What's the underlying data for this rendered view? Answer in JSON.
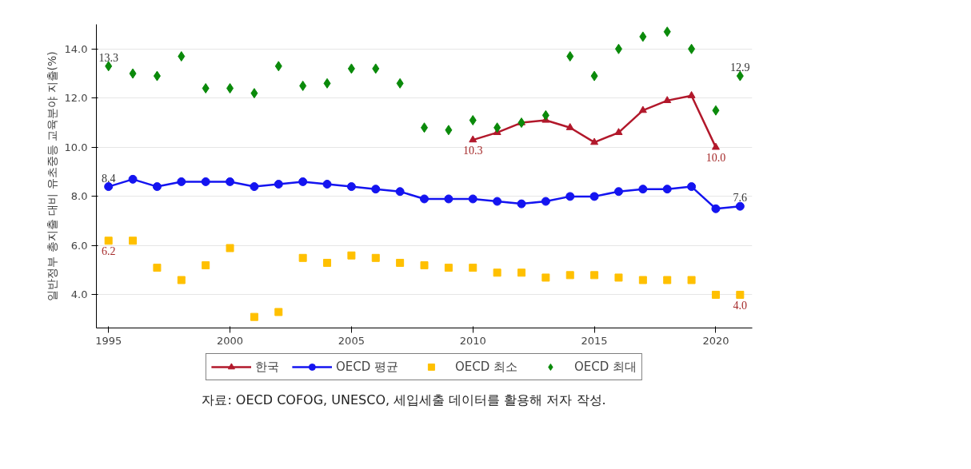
{
  "chart_data": {
    "type": "line",
    "ylabel": "일반정부 총지출 대비 유초중등 교육분야 지출(%)",
    "x": [
      1995,
      1996,
      1997,
      1998,
      1999,
      2000,
      2001,
      2002,
      2003,
      2004,
      2005,
      2006,
      2007,
      2008,
      2009,
      2010,
      2011,
      2012,
      2013,
      2014,
      2015,
      2016,
      2017,
      2018,
      2019,
      2020,
      2021
    ],
    "xlim": [
      1994.5,
      2021.5
    ],
    "xticks": [
      1995,
      2000,
      2005,
      2010,
      2015,
      2020
    ],
    "ylim": [
      2.65,
      15.0
    ],
    "yticks": [
      {
        "value": 4,
        "label": "4.0"
      },
      {
        "value": 6,
        "label": "6.0"
      },
      {
        "value": 8,
        "label": "8.0"
      },
      {
        "value": 10,
        "label": "10.0"
      },
      {
        "value": 12,
        "label": "12.0"
      },
      {
        "value": 14,
        "label": "14.0"
      }
    ],
    "grid": "y",
    "legend": "bottom",
    "series": [
      {
        "name": "한국",
        "marker": "triangle",
        "color": "#b2182b",
        "values": [
          null,
          null,
          null,
          null,
          null,
          null,
          null,
          null,
          null,
          null,
          null,
          null,
          null,
          null,
          null,
          10.3,
          10.6,
          11.0,
          11.1,
          10.8,
          10.2,
          10.6,
          11.5,
          11.9,
          12.1,
          10.0,
          null
        ],
        "value_labels": [
          null,
          null,
          null,
          null,
          null,
          null,
          null,
          null,
          null,
          null,
          null,
          null,
          null,
          null,
          null,
          "10.3",
          null,
          null,
          null,
          null,
          null,
          null,
          null,
          null,
          null,
          "10.0",
          null
        ]
      },
      {
        "name": "OECD 평균",
        "marker": "circle",
        "color": "#1414f0",
        "values": [
          8.4,
          8.7,
          8.4,
          8.6,
          8.6,
          8.6,
          8.4,
          8.5,
          8.6,
          8.5,
          8.4,
          8.3,
          8.2,
          7.9,
          7.9,
          7.9,
          7.8,
          7.7,
          7.8,
          8.0,
          8.0,
          8.2,
          8.3,
          8.3,
          8.4,
          7.5,
          7.6
        ],
        "value_labels": [
          "8.4",
          null,
          null,
          null,
          null,
          null,
          null,
          null,
          null,
          null,
          null,
          null,
          null,
          null,
          null,
          null,
          null,
          null,
          null,
          null,
          null,
          null,
          null,
          null,
          null,
          null,
          "7.6"
        ]
      },
      {
        "name": "OECD 최소",
        "type": "scatter",
        "marker": "square",
        "color": "#ffc000",
        "values": [
          6.2,
          6.2,
          5.1,
          4.6,
          5.2,
          5.9,
          3.1,
          3.3,
          5.5,
          5.3,
          5.6,
          5.5,
          5.3,
          5.2,
          5.1,
          5.1,
          4.9,
          4.9,
          4.7,
          4.8,
          4.8,
          4.7,
          4.6,
          4.6,
          4.6,
          4.0,
          4.0
        ],
        "value_labels": [
          "6.2",
          null,
          null,
          null,
          null,
          null,
          null,
          null,
          null,
          null,
          null,
          null,
          null,
          null,
          null,
          null,
          null,
          null,
          null,
          null,
          null,
          null,
          null,
          null,
          null,
          null,
          "4.0"
        ]
      },
      {
        "name": "OECD 최대",
        "type": "scatter",
        "marker": "diamond",
        "color": "#0a8a0a",
        "values": [
          13.3,
          13.0,
          12.9,
          13.7,
          12.4,
          12.4,
          12.2,
          13.3,
          12.5,
          12.6,
          13.2,
          13.2,
          12.6,
          10.8,
          10.7,
          11.1,
          10.8,
          11.0,
          11.3,
          13.7,
          12.9,
          14.0,
          14.5,
          14.7,
          14.0,
          11.5,
          12.9
        ],
        "value_labels": [
          "13.3",
          null,
          null,
          null,
          null,
          null,
          null,
          null,
          null,
          null,
          null,
          null,
          null,
          null,
          null,
          null,
          null,
          null,
          null,
          null,
          null,
          null,
          null,
          null,
          null,
          null,
          "12.9"
        ]
      }
    ],
    "annotations": [
      "자료: OECD COFOG, UNESCO, 세입세출 데이터를 활용해 저자 작성."
    ]
  }
}
